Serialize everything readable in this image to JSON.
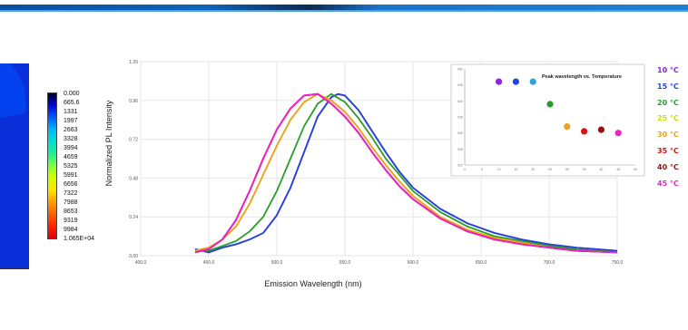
{
  "colorbar": {
    "labels": [
      "0.000",
      "665.6",
      "1331",
      "1997",
      "2663",
      "3328",
      "3994",
      "4659",
      "5325",
      "5991",
      "6656",
      "7322",
      "7988",
      "8653",
      "9319",
      "9984",
      "1.065E+04"
    ],
    "colors": [
      "#000028",
      "#0000d8",
      "#0060ff",
      "#00b8ff",
      "#00e0d0",
      "#20f090",
      "#80ff40",
      "#d0ff00",
      "#ffe000",
      "#ffa000",
      "#ff6000",
      "#ff2000",
      "#e00000"
    ]
  },
  "chart_data": [
    {
      "type": "line",
      "xlabel": "Emission Wavelength (nm)",
      "ylabel": "Normalized PL Intensity",
      "xlim": [
        400,
        750
      ],
      "ylim": [
        0,
        1.2
      ],
      "x_ticks": [
        "400.0",
        "450.0",
        "500.0",
        "550.0",
        "600.0",
        "650.0",
        "700.0",
        "750.0"
      ],
      "y_ticks": [
        "0.00",
        "0.24",
        "0.48",
        "0.72",
        "0.96",
        "1.20"
      ],
      "grid": true,
      "series": [
        {
          "name": "10 °C",
          "color": "#8e24d8",
          "x": [
            440,
            450,
            460,
            470,
            480,
            490,
            500,
            510,
            520,
            530,
            540,
            545,
            550,
            560,
            570,
            580,
            590,
            600,
            620,
            640,
            660,
            680,
            700,
            720,
            750
          ],
          "y": [
            0.04,
            0.02,
            0.05,
            0.07,
            0.1,
            0.14,
            0.25,
            0.42,
            0.64,
            0.86,
            0.98,
            1.0,
            0.99,
            0.9,
            0.77,
            0.64,
            0.52,
            0.42,
            0.29,
            0.2,
            0.14,
            0.1,
            0.07,
            0.05,
            0.03
          ]
        },
        {
          "name": "15 °C",
          "color": "#2244dd",
          "x": [
            440,
            450,
            460,
            470,
            480,
            490,
            500,
            510,
            520,
            530,
            540,
            545,
            550,
            560,
            570,
            580,
            590,
            600,
            620,
            640,
            660,
            680,
            700,
            720,
            750
          ],
          "y": [
            0.04,
            0.02,
            0.05,
            0.07,
            0.1,
            0.14,
            0.25,
            0.42,
            0.64,
            0.86,
            0.98,
            1.0,
            0.99,
            0.9,
            0.77,
            0.64,
            0.52,
            0.42,
            0.29,
            0.2,
            0.14,
            0.1,
            0.07,
            0.05,
            0.03
          ]
        },
        {
          "name": "20 °C",
          "color": "#2a9d2a",
          "x": [
            440,
            450,
            460,
            470,
            480,
            490,
            500,
            510,
            520,
            530,
            540,
            550,
            560,
            570,
            580,
            590,
            600,
            620,
            640,
            660,
            680,
            700,
            720,
            750
          ],
          "y": [
            0.03,
            0.03,
            0.06,
            0.09,
            0.15,
            0.24,
            0.4,
            0.6,
            0.8,
            0.94,
            1.0,
            0.95,
            0.85,
            0.73,
            0.6,
            0.5,
            0.4,
            0.27,
            0.18,
            0.12,
            0.09,
            0.06,
            0.04,
            0.02
          ]
        },
        {
          "name": "25 °C",
          "color": "#c8e000",
          "x": [
            440,
            450,
            460,
            470,
            480,
            490,
            500,
            510,
            520,
            530,
            540,
            550,
            560,
            570,
            580,
            590,
            600,
            620,
            640,
            660,
            680,
            700,
            720,
            750
          ],
          "y": [
            0.03,
            0.05,
            0.1,
            0.18,
            0.32,
            0.5,
            0.68,
            0.84,
            0.95,
            1.0,
            0.96,
            0.89,
            0.79,
            0.67,
            0.56,
            0.46,
            0.37,
            0.24,
            0.16,
            0.11,
            0.08,
            0.05,
            0.03,
            0.02
          ]
        },
        {
          "name": "30 °C",
          "color": "#f0a020",
          "x": [
            440,
            450,
            460,
            470,
            480,
            490,
            500,
            510,
            520,
            530,
            540,
            550,
            560,
            570,
            580,
            590,
            600,
            620,
            640,
            660,
            680,
            700,
            720,
            750
          ],
          "y": [
            0.03,
            0.05,
            0.1,
            0.18,
            0.32,
            0.5,
            0.68,
            0.84,
            0.95,
            1.0,
            0.96,
            0.89,
            0.79,
            0.67,
            0.56,
            0.46,
            0.37,
            0.24,
            0.16,
            0.11,
            0.08,
            0.05,
            0.03,
            0.02
          ]
        },
        {
          "name": "35 °C",
          "color": "#dd1111",
          "x": [
            440,
            450,
            460,
            470,
            480,
            490,
            500,
            510,
            520,
            530,
            540,
            550,
            560,
            570,
            580,
            590,
            600,
            620,
            640,
            660,
            680,
            700,
            720,
            750
          ],
          "y": [
            0.02,
            0.04,
            0.1,
            0.22,
            0.4,
            0.6,
            0.78,
            0.91,
            0.99,
            1.0,
            0.94,
            0.86,
            0.76,
            0.64,
            0.53,
            0.43,
            0.35,
            0.23,
            0.15,
            0.1,
            0.07,
            0.05,
            0.03,
            0.02
          ]
        },
        {
          "name": "40 °C",
          "color": "#9a1010",
          "x": [
            440,
            450,
            460,
            470,
            480,
            490,
            500,
            510,
            520,
            530,
            540,
            550,
            560,
            570,
            580,
            590,
            600,
            620,
            640,
            660,
            680,
            700,
            720,
            750
          ],
          "y": [
            0.02,
            0.04,
            0.1,
            0.22,
            0.4,
            0.6,
            0.78,
            0.91,
            0.99,
            1.0,
            0.94,
            0.86,
            0.76,
            0.64,
            0.53,
            0.43,
            0.35,
            0.23,
            0.15,
            0.1,
            0.07,
            0.05,
            0.03,
            0.02
          ]
        },
        {
          "name": "45 °C",
          "color": "#ee22cc",
          "x": [
            440,
            450,
            460,
            470,
            480,
            490,
            500,
            510,
            520,
            530,
            540,
            550,
            560,
            570,
            580,
            590,
            600,
            620,
            640,
            660,
            680,
            700,
            720,
            750
          ],
          "y": [
            0.02,
            0.04,
            0.1,
            0.22,
            0.4,
            0.6,
            0.78,
            0.91,
            0.99,
            1.0,
            0.94,
            0.86,
            0.76,
            0.64,
            0.53,
            0.43,
            0.35,
            0.23,
            0.15,
            0.1,
            0.07,
            0.05,
            0.03,
            0.02
          ]
        }
      ]
    },
    {
      "type": "scatter",
      "title": "Peak wavelength vs. Temperature",
      "xlim": [
        0,
        50
      ],
      "ylim": [
        520,
        550
      ],
      "x_ticks": [
        "0",
        "5",
        "10",
        "15",
        "20",
        "25",
        "30",
        "35",
        "40",
        "45",
        "50"
      ],
      "y_ticks": [
        "520",
        "525",
        "530",
        "535",
        "540",
        "545",
        "550"
      ],
      "grid": false,
      "points": [
        {
          "x": 10,
          "y": 546,
          "color": "#8e24d8"
        },
        {
          "x": 15,
          "y": 546,
          "color": "#2244dd"
        },
        {
          "x": 20,
          "y": 546,
          "color": "#29a3e0"
        },
        {
          "x": 25,
          "y": 539,
          "color": "#2a9d2a"
        },
        {
          "x": 30,
          "y": 532,
          "color": "#f0a020"
        },
        {
          "x": 35,
          "y": 530.5,
          "color": "#dd1111"
        },
        {
          "x": 40,
          "y": 531,
          "color": "#9a1010"
        },
        {
          "x": 45,
          "y": 530,
          "color": "#ee22cc"
        }
      ]
    }
  ]
}
